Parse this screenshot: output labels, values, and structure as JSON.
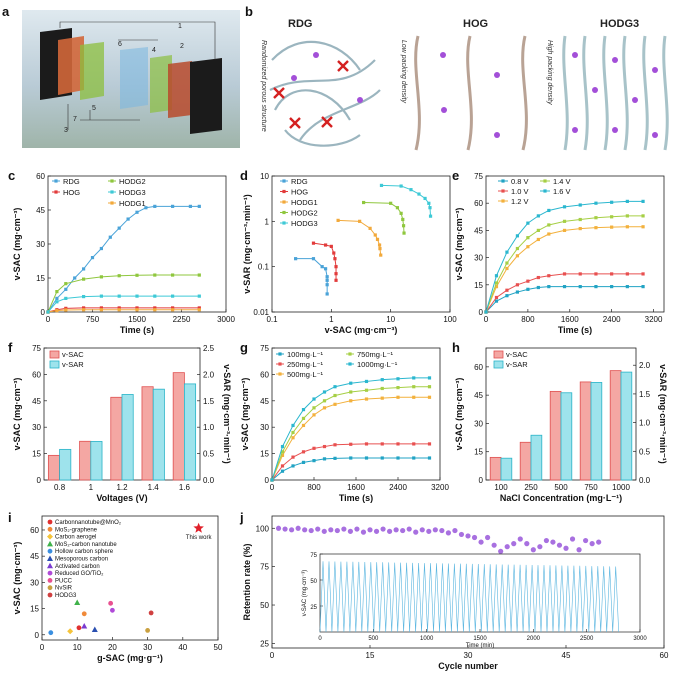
{
  "panel_labels": {
    "a": "a",
    "b": "b",
    "c": "c",
    "d": "d",
    "e": "e",
    "f": "f",
    "g": "g",
    "h": "h",
    "i": "i",
    "j": "j"
  },
  "panel_a": {
    "numbers": [
      "1",
      "2",
      "3",
      "4",
      "5",
      "6",
      "7"
    ]
  },
  "panel_b": {
    "titles": [
      "RDG",
      "HOG",
      "HODG3"
    ],
    "side_texts": [
      "Randomized porous structure",
      "Low packing density",
      "High packing density"
    ]
  },
  "colors": {
    "RDG": "#4aa3d8",
    "HOG": "#e23b3b",
    "HODG1": "#f2a93b",
    "HODG2": "#8fc73e",
    "HODG3": "#3ec9d6",
    "v_SAC": "#f4a7a3",
    "v_SAR": "#9ee3ec",
    "j_top": "#a870e0",
    "j_inset": "#5bb6e0",
    "V0_8": "#21a3c4",
    "V1_0": "#e85050",
    "V1_2": "#f3b13d",
    "V1_4": "#a6cf45",
    "V1_6": "#2bb7cf",
    "this_work": "#e0202a"
  },
  "chart_data": [
    {
      "id": "c",
      "type": "line",
      "xlabel": "Time (s)",
      "ylabel": "v-SAC (mg·cm⁻³)",
      "xlim": [
        0,
        3000
      ],
      "ylim": [
        0,
        60
      ],
      "xticks": [
        "0",
        "750",
        "1500",
        "2250",
        "3000"
      ],
      "yticks": [
        "0",
        "15",
        "30",
        "45",
        "60"
      ],
      "series": [
        {
          "name": "RDG",
          "x": [
            0,
            150,
            300,
            450,
            600,
            750,
            900,
            1050,
            1200,
            1350,
            1500,
            1650,
            1800,
            2100,
            2400,
            2550
          ],
          "y": [
            0,
            6,
            10,
            15,
            19,
            24,
            28,
            33,
            37,
            41,
            44,
            46,
            46.6,
            46.6,
            46.6,
            46.6
          ]
        },
        {
          "name": "HOG",
          "x": [
            0,
            150,
            300,
            600,
            900,
            1200,
            1500,
            1800,
            2100,
            2550
          ],
          "y": [
            0,
            1,
            1.6,
            1.8,
            1.8,
            1.8,
            1.8,
            1.8,
            1.8,
            1.8
          ]
        },
        {
          "name": "HODG1",
          "x": [
            0,
            150,
            300,
            600,
            900,
            1200,
            1500,
            1800,
            2100,
            2550
          ],
          "y": [
            0,
            0.6,
            0.9,
            1,
            1,
            1,
            1,
            1,
            1,
            1
          ]
        },
        {
          "name": "HODG2",
          "x": [
            0,
            150,
            300,
            600,
            900,
            1200,
            1500,
            1800,
            2100,
            2550
          ],
          "y": [
            0,
            9,
            12.5,
            14.5,
            15.5,
            16,
            16.2,
            16.3,
            16.3,
            16.3
          ]
        },
        {
          "name": "HODG3",
          "x": [
            0,
            150,
            300,
            600,
            900,
            1200,
            1500,
            1800,
            2100,
            2550
          ],
          "y": [
            0,
            4.5,
            6,
            6.8,
            7,
            7,
            7,
            7,
            7,
            7
          ]
        }
      ]
    },
    {
      "id": "d",
      "type": "scatter",
      "xlabel": "v-SAC (mg·cm⁻³)",
      "ylabel": "v-SAR (mg·cm⁻³·min⁻¹)",
      "xscale": "log",
      "yscale": "log",
      "xlim": [
        0.1,
        100
      ],
      "ylim": [
        0.01,
        10
      ],
      "xticks": [
        "0.1",
        "1",
        "10",
        "100"
      ],
      "yticks": [
        "0.01",
        "0.1",
        "1",
        "10"
      ],
      "series": [
        {
          "name": "RDG",
          "x": [
            0.25,
            0.5,
            0.7,
            0.8,
            0.85,
            0.85,
            0.85,
            0.85
          ],
          "y": [
            0.15,
            0.15,
            0.1,
            0.09,
            0.06,
            0.05,
            0.04,
            0.025
          ]
        },
        {
          "name": "HOG",
          "x": [
            0.5,
            0.8,
            1.0,
            1.1,
            1.15,
            1.2,
            1.2,
            1.2
          ],
          "y": [
            0.33,
            0.3,
            0.28,
            0.2,
            0.15,
            0.1,
            0.07,
            0.05
          ]
        },
        {
          "name": "HODG1",
          "x": [
            1.3,
            3.0,
            4.5,
            5.5,
            6.0,
            6.5,
            6.6,
            6.8
          ],
          "y": [
            1.05,
            1.0,
            0.7,
            0.5,
            0.4,
            0.3,
            0.25,
            0.18
          ]
        },
        {
          "name": "HODG2",
          "x": [
            3.5,
            10,
            13,
            15,
            16,
            16.5,
            16.8
          ],
          "y": [
            2.6,
            2.5,
            2.0,
            1.5,
            1.1,
            0.8,
            0.55
          ]
        },
        {
          "name": "HODG3",
          "x": [
            7,
            15,
            22,
            30,
            38,
            44,
            46,
            47
          ],
          "y": [
            6.2,
            6.0,
            5.0,
            4.0,
            3.2,
            2.5,
            2.0,
            1.3
          ]
        }
      ]
    },
    {
      "id": "e",
      "type": "line",
      "xlabel": "Time (s)",
      "ylabel": "v-SAC (mg·cm⁻³)",
      "xlim": [
        0,
        3400
      ],
      "ylim": [
        0,
        75
      ],
      "xticks": [
        "0",
        "800",
        "1600",
        "2400",
        "3200"
      ],
      "yticks": [
        "0",
        "15",
        "30",
        "45",
        "60",
        "75"
      ],
      "series": [
        {
          "name": "0.8 V",
          "x": [
            0,
            200,
            400,
            600,
            800,
            1000,
            1200,
            1500,
            1800,
            2100,
            2400,
            2700,
            3000
          ],
          "y": [
            0,
            6,
            9,
            11,
            12.5,
            13.5,
            14,
            14,
            14,
            14,
            14,
            14,
            14
          ]
        },
        {
          "name": "1.0 V",
          "x": [
            0,
            200,
            400,
            600,
            800,
            1000,
            1200,
            1500,
            1800,
            2100,
            2400,
            2700,
            3000
          ],
          "y": [
            0,
            8,
            12,
            15,
            17,
            19,
            20,
            21,
            21,
            21,
            21,
            21,
            21
          ]
        },
        {
          "name": "1.2 V",
          "x": [
            0,
            200,
            400,
            600,
            800,
            1000,
            1200,
            1500,
            1800,
            2100,
            2400,
            2700,
            3000
          ],
          "y": [
            0,
            14,
            24,
            31,
            36,
            40,
            43,
            45,
            46,
            46.5,
            46.8,
            47,
            47
          ]
        },
        {
          "name": "1.4 V",
          "x": [
            0,
            200,
            400,
            600,
            800,
            1000,
            1200,
            1500,
            1800,
            2100,
            2400,
            2700,
            3000
          ],
          "y": [
            0,
            16,
            27,
            35,
            41,
            45,
            48,
            50,
            51,
            52,
            52.5,
            53,
            53
          ]
        },
        {
          "name": "1.6 V",
          "x": [
            0,
            200,
            400,
            600,
            800,
            1000,
            1200,
            1500,
            1800,
            2100,
            2400,
            2700,
            3000
          ],
          "y": [
            0,
            20,
            33,
            42,
            49,
            53,
            56,
            58,
            59,
            60,
            60.5,
            61,
            61
          ]
        }
      ]
    },
    {
      "id": "f",
      "type": "bar",
      "xlabel": "Voltages (V)",
      "ylabel": "v-SAC (mg·cm⁻³)",
      "y2label": "v-SAR (mg·cm⁻³·min⁻¹)",
      "categories": [
        "0.8",
        "1",
        "1.2",
        "1.4",
        "1.6"
      ],
      "ylim": [
        0,
        75
      ],
      "y2lim": [
        0,
        2.5
      ],
      "yticks": [
        "0",
        "15",
        "30",
        "45",
        "60",
        "75"
      ],
      "y2ticks": [
        "0.0",
        "0.5",
        "1.0",
        "1.5",
        "2.0",
        "2.5"
      ],
      "series": [
        {
          "name": "v-SAC",
          "values": [
            14,
            22,
            47,
            53,
            61
          ]
        },
        {
          "name": "v-SAR",
          "values": [
            0.58,
            0.73,
            1.62,
            1.72,
            1.82
          ]
        }
      ]
    },
    {
      "id": "g",
      "type": "line",
      "xlabel": "Time (s)",
      "ylabel": "v-SAC (mg·cm⁻³)",
      "xlim": [
        0,
        3200
      ],
      "ylim": [
        0,
        75
      ],
      "xticks": [
        "0",
        "800",
        "1600",
        "2400",
        "3200"
      ],
      "yticks": [
        "0",
        "15",
        "30",
        "45",
        "60",
        "75"
      ],
      "series": [
        {
          "name": "100mg·L⁻¹",
          "x": [
            0,
            200,
            400,
            600,
            800,
            1000,
            1200,
            1500,
            1800,
            2100,
            2400,
            2700,
            3000
          ],
          "y": [
            0,
            5,
            8,
            10,
            11,
            12,
            12.3,
            12.5,
            12.5,
            12.5,
            12.5,
            12.5,
            12.5
          ]
        },
        {
          "name": "250mg·L⁻¹",
          "x": [
            0,
            200,
            400,
            600,
            800,
            1000,
            1200,
            1500,
            1800,
            2100,
            2400,
            2700,
            3000
          ],
          "y": [
            0,
            8,
            13,
            16,
            18,
            19,
            20,
            20.3,
            20.5,
            20.5,
            20.5,
            20.5,
            20.5
          ]
        },
        {
          "name": "500mg·L⁻¹",
          "x": [
            0,
            200,
            400,
            600,
            800,
            1000,
            1200,
            1500,
            1800,
            2100,
            2400,
            2700,
            3000
          ],
          "y": [
            0,
            14,
            24,
            31,
            37,
            41,
            43,
            45,
            46,
            46.5,
            47,
            47,
            47
          ]
        },
        {
          "name": "750mg·L⁻¹",
          "x": [
            0,
            200,
            400,
            600,
            800,
            1000,
            1200,
            1500,
            1800,
            2100,
            2400,
            2700,
            3000
          ],
          "y": [
            0,
            16,
            27,
            35,
            41,
            45,
            48,
            50,
            51,
            52,
            52.5,
            53,
            53
          ]
        },
        {
          "name": "1000mg·L⁻¹",
          "x": [
            0,
            200,
            400,
            600,
            800,
            1000,
            1200,
            1500,
            1800,
            2100,
            2400,
            2700,
            3000
          ],
          "y": [
            0,
            19,
            31,
            40,
            46,
            50,
            53,
            55,
            56,
            57,
            57.5,
            58,
            58
          ]
        }
      ]
    },
    {
      "id": "h",
      "type": "bar",
      "xlabel": "NaCl Concentration (mg·L⁻¹)",
      "ylabel": "v-SAC (mg·cm⁻³)",
      "y2label": "v-SAR (mg·cm⁻³·min⁻¹)",
      "categories": [
        "100",
        "250",
        "500",
        "750",
        "1000"
      ],
      "ylim": [
        0,
        70
      ],
      "y2lim": [
        0,
        2.3
      ],
      "yticks": [
        "0",
        "15",
        "30",
        "45",
        "60"
      ],
      "y2ticks": [
        "0.0",
        "0.5",
        "1.0",
        "1.5",
        "2.0"
      ],
      "series": [
        {
          "name": "v-SAC",
          "values": [
            12,
            20,
            47,
            52,
            58
          ]
        },
        {
          "name": "v-SAR",
          "values": [
            0.38,
            0.78,
            1.52,
            1.7,
            1.88
          ]
        }
      ]
    },
    {
      "id": "i",
      "type": "scatter",
      "xlabel": "g-SAC (mg·g⁻¹)",
      "ylabel": "v-SAC (mg·cm⁻³)",
      "xlim": [
        0,
        50
      ],
      "ylim": [
        -3,
        68
      ],
      "xticks": [
        "0",
        "10",
        "20",
        "30",
        "40",
        "50"
      ],
      "yticks": [
        "0",
        "15",
        "30",
        "45",
        "60"
      ],
      "annotation": "This work",
      "series": [
        {
          "name": "Carbonnanotube@MnO₂",
          "x": [
            10.5
          ],
          "y": [
            4
          ]
        },
        {
          "name": "MoS₂-graphene",
          "x": [
            12
          ],
          "y": [
            12
          ]
        },
        {
          "name": "Carbon aerogel",
          "x": [
            8
          ],
          "y": [
            2
          ]
        },
        {
          "name": "MoS₂-carbon nanotube",
          "x": [
            10
          ],
          "y": [
            18.5
          ]
        },
        {
          "name": "Hollow carbon sphere",
          "x": [
            2.5
          ],
          "y": [
            1.2
          ]
        },
        {
          "name": "Mesoporous carbon",
          "x": [
            15
          ],
          "y": [
            3
          ]
        },
        {
          "name": "Activated carbon",
          "x": [
            12
          ],
          "y": [
            5
          ]
        },
        {
          "name": "Reduced GO/TiO₂",
          "x": [
            20
          ],
          "y": [
            14
          ]
        },
        {
          "name": "PUCC",
          "x": [
            19.5
          ],
          "y": [
            18
          ]
        },
        {
          "name": "NvSiR",
          "x": [
            30
          ],
          "y": [
            2.5
          ]
        },
        {
          "name": "HODG3",
          "x": [
            31
          ],
          "y": [
            12.5
          ]
        },
        {
          "name": "This work",
          "x": [
            44.5
          ],
          "y": [
            61
          ]
        }
      ]
    },
    {
      "id": "j",
      "type": "scatter",
      "xlabel": "Cycle number",
      "ylabel": "Retention rate (%)",
      "xlim": [
        0,
        60
      ],
      "ylim": [
        22,
        108
      ],
      "xticks": [
        "0",
        "15",
        "30",
        "45",
        "60"
      ],
      "yticks": [
        "25",
        "50",
        "75",
        "100"
      ],
      "series": [
        {
          "name": "Retention rate",
          "x": [
            1,
            2,
            3,
            4,
            5,
            6,
            7,
            8,
            9,
            10,
            11,
            12,
            13,
            14,
            15,
            16,
            17,
            18,
            19,
            20,
            21,
            22,
            23,
            24,
            25,
            26,
            27,
            28,
            29,
            30,
            31,
            32,
            33,
            34,
            35,
            36,
            37,
            38,
            39,
            40,
            41,
            42,
            43,
            44,
            45,
            46,
            47,
            48,
            49,
            50
          ],
          "y": [
            100,
            99.5,
            99,
            100,
            99,
            98.5,
            99.5,
            98,
            99,
            98.5,
            99.5,
            98,
            99.5,
            97.5,
            99,
            98,
            99.5,
            98,
            99,
            98.5,
            99.5,
            97.5,
            99,
            98,
            99,
            98.5,
            97,
            98.5,
            96,
            95,
            94,
            91,
            94,
            89,
            85,
            88,
            90,
            93,
            90,
            86,
            88,
            92,
            91,
            89,
            87,
            93,
            86,
            92,
            90,
            91
          ]
        },
        {
          "name": "Inset",
          "xlabel": "Time (min)",
          "ylabel": "v-SAC (mg·cm⁻³)",
          "xlim": [
            0,
            3000
          ],
          "ylim": [
            0,
            75
          ],
          "xticks": [
            "0",
            "500",
            "1000",
            "1500",
            "2000",
            "2500",
            "3000"
          ],
          "yticks": [
            "25",
            "50",
            "75"
          ],
          "cycles": 50,
          "cycle_min": 56,
          "peak_start": 68,
          "peak_end": 63
        }
      ]
    }
  ]
}
